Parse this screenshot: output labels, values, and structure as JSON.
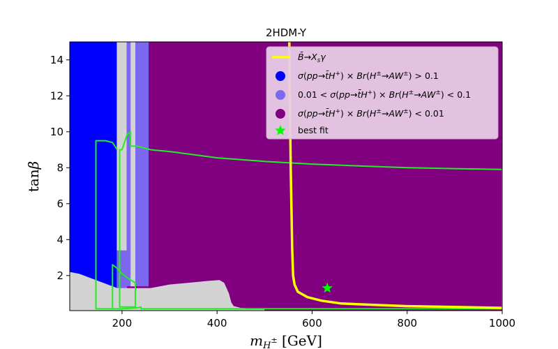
{
  "chart_data": {
    "type": "scatter",
    "title": "2HDM-Y",
    "xlabel": "m_{H^±} [GeV]",
    "ylabel": "tanβ",
    "xlim": [
      90,
      1000
    ],
    "ylim": [
      0.05,
      15
    ],
    "x_ticks": [
      200,
      400,
      600,
      800,
      1000
    ],
    "y_ticks": [
      2,
      4,
      6,
      8,
      10,
      12,
      14
    ],
    "background_color": "#800080",
    "legend_position": "top-right",
    "legend_bg": "#e8cde6",
    "colors": {
      "excluded_gray": "#d3d3d3",
      "blue": "#0000ff",
      "light_purple": "#7b68ee",
      "purple": "#800080",
      "green": "#22ee22",
      "yellow": "#ffff00",
      "star": "#00ff00"
    },
    "legend": [
      {
        "label": "B̄→X_sγ",
        "marker": "line",
        "color": "#ffff00"
      },
      {
        "label": "σ(pp→t̄H⁺) × Br(H±→AW±) > 0.1",
        "marker": "circle",
        "color": "#0000ff"
      },
      {
        "label": "0.01 < σ(pp→t̄H⁺) × Br(H±→AW±) < 0.1",
        "marker": "circle",
        "color": "#7b68ee"
      },
      {
        "label": "σ(pp→t̄H⁺) × Br(H±→AW±) < 0.01",
        "marker": "circle",
        "color": "#800080"
      },
      {
        "label": "best fit",
        "marker": "star",
        "color": "#00ff00"
      }
    ],
    "best_fit": {
      "x": 632,
      "y": 1.3
    },
    "bsgamma_curve": [
      [
        552,
        15
      ],
      [
        553,
        12
      ],
      [
        555,
        8
      ],
      [
        557,
        5
      ],
      [
        558,
        3.5
      ],
      [
        560,
        2
      ],
      [
        563,
        1.5
      ],
      [
        570,
        1.1
      ],
      [
        590,
        0.8
      ],
      [
        620,
        0.6
      ],
      [
        660,
        0.45
      ],
      [
        720,
        0.38
      ],
      [
        800,
        0.3
      ],
      [
        900,
        0.25
      ],
      [
        1000,
        0.2
      ]
    ],
    "green_contour": [
      [
        180,
        0.15
      ],
      [
        180,
        2.6
      ],
      [
        190,
        2.4
      ],
      [
        200,
        2.1
      ],
      [
        215,
        1.8
      ],
      [
        228,
        1.6
      ],
      [
        228,
        0.25
      ],
      [
        195,
        0.25
      ],
      [
        195,
        9.0
      ],
      [
        200,
        9.0
      ],
      [
        210,
        9.8
      ],
      [
        218,
        10.0
      ],
      [
        218,
        9.2
      ],
      [
        232,
        9.2
      ],
      [
        260,
        9.0
      ],
      [
        300,
        8.9
      ],
      [
        400,
        8.55
      ],
      [
        500,
        8.35
      ],
      [
        600,
        8.2
      ],
      [
        700,
        8.1
      ],
      [
        800,
        8.0
      ],
      [
        900,
        7.95
      ],
      [
        1000,
        7.9
      ],
      [
        1000,
        0.15
      ],
      [
        900,
        0.15
      ],
      [
        700,
        0.15
      ],
      [
        500,
        0.15
      ],
      [
        420,
        0.15
      ],
      [
        300,
        0.15
      ],
      [
        240,
        0.15
      ],
      [
        240,
        0.25
      ],
      [
        232,
        0.2
      ],
      [
        200,
        0.15
      ],
      [
        180,
        0.15
      ],
      [
        145,
        0.15
      ],
      [
        145,
        9.5
      ],
      [
        165,
        9.5
      ],
      [
        180,
        9.4
      ],
      [
        190,
        9.0
      ]
    ],
    "gray_floor": [
      [
        90,
        2.2
      ],
      [
        110,
        2.1
      ],
      [
        130,
        1.9
      ],
      [
        150,
        1.7
      ],
      [
        170,
        1.5
      ],
      [
        190,
        1.3
      ],
      [
        220,
        1.3
      ],
      [
        260,
        1.3
      ],
      [
        300,
        1.5
      ],
      [
        340,
        1.6
      ],
      [
        380,
        1.7
      ],
      [
        405,
        1.75
      ],
      [
        415,
        1.6
      ],
      [
        425,
        1.0
      ],
      [
        430,
        0.5
      ],
      [
        435,
        0.3
      ],
      [
        450,
        0.2
      ],
      [
        500,
        0.15
      ]
    ],
    "regions": [
      {
        "name": "blue",
        "x": [
          90,
          189
        ],
        "y": [
          1.0,
          15
        ]
      },
      {
        "name": "gray-strip",
        "x": [
          189,
          210
        ],
        "y": [
          0.05,
          15
        ]
      },
      {
        "name": "light-purple-low",
        "x": [
          189,
          210
        ],
        "y": [
          1.2,
          3.4
        ]
      },
      {
        "name": "light-purple",
        "x": [
          210,
          256
        ],
        "y": [
          1.4,
          15
        ]
      },
      {
        "name": "gray-gap",
        "x": [
          218,
          228
        ],
        "y": [
          1.4,
          15
        ]
      }
    ]
  }
}
